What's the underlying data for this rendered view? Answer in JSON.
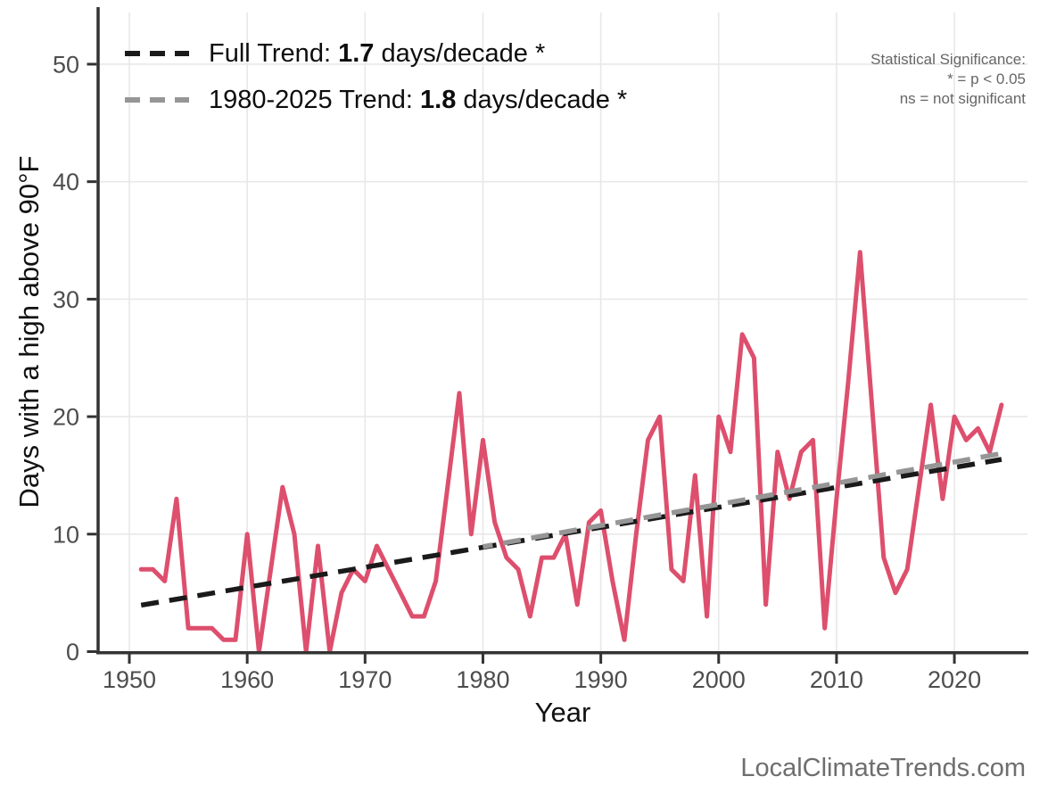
{
  "watermark": "LocalClimateTrends.com",
  "significance": {
    "title": "Statistical Significance:",
    "alpha": "* = p < 0.05",
    "ns": "ns = not significant"
  },
  "legend": {
    "items": [
      {
        "prefix": "Full Trend: ",
        "value": "1.7",
        "suffix": " days/decade *",
        "color": "#1a1a1a"
      },
      {
        "prefix": "1980-2025 Trend: ",
        "value": "1.8",
        "suffix": " days/decade *",
        "color": "#969696"
      }
    ]
  },
  "chart_data": {
    "type": "line",
    "title": "",
    "xlabel": "Year",
    "ylabel": "Days with a high above 90°F",
    "xlim": [
      1947.35,
      2026.2
    ],
    "ylim": [
      0,
      54.4
    ],
    "x_ticks": [
      1950,
      1960,
      1970,
      1980,
      1990,
      2000,
      2010,
      2020
    ],
    "y_ticks": [
      0,
      10,
      20,
      30,
      40,
      50
    ],
    "grid": true,
    "legend_position": "top-left-inside",
    "series": [
      {
        "name": "Days with a high above 90°F",
        "color": "#dd4f6d",
        "x": [
          1951,
          1952,
          1953,
          1954,
          1955,
          1956,
          1957,
          1958,
          1959,
          1960,
          1961,
          1962,
          1963,
          1964,
          1965,
          1966,
          1967,
          1968,
          1969,
          1970,
          1971,
          1972,
          1973,
          1974,
          1975,
          1976,
          1977,
          1978,
          1979,
          1980,
          1981,
          1982,
          1983,
          1984,
          1985,
          1986,
          1987,
          1988,
          1989,
          1990,
          1991,
          1992,
          1993,
          1994,
          1995,
          1996,
          1997,
          1998,
          1999,
          2000,
          2001,
          2002,
          2003,
          2004,
          2005,
          2006,
          2007,
          2008,
          2009,
          2010,
          2011,
          2012,
          2013,
          2014,
          2015,
          2016,
          2017,
          2018,
          2019,
          2020,
          2021,
          2022,
          2023,
          2024
        ],
        "values": [
          7,
          7,
          6,
          13,
          2,
          2,
          2,
          1,
          1,
          10,
          0,
          7,
          14,
          10,
          0,
          9,
          0,
          5,
          7,
          6,
          9,
          7,
          5,
          3,
          3,
          6,
          14,
          22,
          10,
          18,
          11,
          8,
          7,
          3,
          8,
          8,
          10,
          4,
          11,
          12,
          6,
          1,
          10,
          18,
          20,
          7,
          6,
          15,
          3,
          20,
          17,
          27,
          25,
          4,
          17,
          13,
          17,
          18,
          2,
          13,
          23,
          34,
          21,
          8,
          5,
          7,
          14,
          21,
          13,
          20,
          18,
          19,
          17,
          21
        ]
      }
    ],
    "trend_lines": [
      {
        "name": "Full Trend",
        "rate_days_per_decade": 1.7,
        "significance": "*",
        "color": "#1a1a1a",
        "x": [
          1951,
          2024
        ],
        "y": [
          3.95,
          16.36
        ]
      },
      {
        "name": "1980-2025 Trend",
        "rate_days_per_decade": 1.8,
        "significance": "*",
        "color": "#969696",
        "x": [
          1980,
          2024.5
        ],
        "y": [
          8.93,
          16.95
        ]
      }
    ]
  }
}
